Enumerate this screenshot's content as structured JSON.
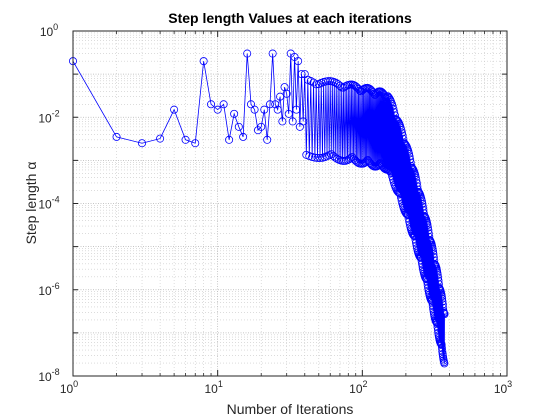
{
  "chart_data": {
    "type": "line",
    "title": "Step length Values at each iterations",
    "xlabel": "Number of Iterations",
    "ylabel": "Step length α",
    "xscale": "log",
    "yscale": "log",
    "xlim": [
      1,
      1000
    ],
    "ylim": [
      1e-08,
      1
    ],
    "grid": true,
    "minor_grid": true,
    "marker": "circle",
    "line_color": "#0000ff",
    "x_tick_labels": [
      {
        "base": "10",
        "exp": "0"
      },
      {
        "base": "10",
        "exp": "1"
      },
      {
        "base": "10",
        "exp": "2"
      },
      {
        "base": "10",
        "exp": "3"
      }
    ],
    "y_tick_labels": [
      {
        "base": "10",
        "exp": "-8"
      },
      {
        "base": "10",
        "exp": "-6"
      },
      {
        "base": "10",
        "exp": "-4"
      },
      {
        "base": "10",
        "exp": "-2"
      },
      {
        "base": "10",
        "exp": "0"
      }
    ],
    "series": [
      {
        "x": [
          1,
          2,
          3,
          4,
          5,
          6,
          7,
          8,
          9,
          10,
          11,
          12,
          13,
          14,
          15,
          16,
          17,
          18,
          19,
          20,
          21,
          22,
          23,
          24,
          25,
          26,
          27,
          28,
          29,
          30,
          31,
          32,
          33,
          34,
          35,
          36,
          37,
          38,
          39,
          40
        ],
        "y": [
          0.2,
          0.0035,
          0.0025,
          0.0032,
          0.015,
          0.003,
          0.0025,
          0.2,
          0.02,
          0.015,
          0.02,
          0.003,
          0.012,
          0.006,
          0.0035,
          0.3,
          0.02,
          0.015,
          0.005,
          0.006,
          0.015,
          0.003,
          0.02,
          0.3,
          0.02,
          0.015,
          0.03,
          0.008,
          0.05,
          0.035,
          0.012,
          0.3,
          0.008,
          0.25,
          0.015,
          0.2,
          0.006,
          0.1,
          0.008,
          0.1
        ]
      }
    ],
    "envelope": {
      "dense_start_iteration": 40,
      "peak_iteration": 150,
      "end_iteration": 370,
      "upper_at_start": 0.08,
      "lower_at_start": 0.0012,
      "upper_at_peak": 0.035,
      "lower_at_peak": 0.0006,
      "upper_at_end": 3e-07,
      "lower_at_end": 1.8e-08
    }
  }
}
